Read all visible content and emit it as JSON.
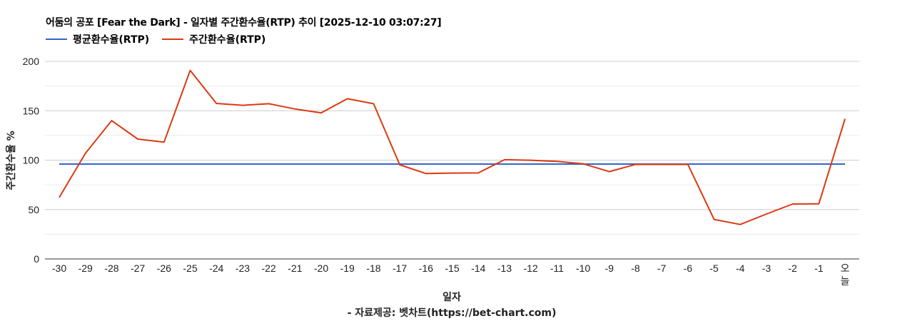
{
  "title": "어둠의 공포 [Fear the Dark] - 일자별 주간환수율(RTP) 추이 [2025-12-10 03:07:27]",
  "legend": [
    {
      "label": "평균환수율(RTP)",
      "color": "#3366cc"
    },
    {
      "label": "주간환수율(RTP)",
      "color": "#dc3912"
    }
  ],
  "source_note": "- 자료제공: 벳차트(https://bet-chart.com)",
  "chart_data": {
    "type": "line",
    "title": "어둠의 공포 [Fear the Dark] - 일자별 주간환수율(RTP) 추이 [2025-12-10 03:07:27]",
    "xlabel": "일자",
    "ylabel": "주간환수율 %",
    "ylim": [
      0,
      200
    ],
    "yticks": [
      0,
      50,
      100,
      150,
      200
    ],
    "minor_gridlines": [
      25,
      75,
      125,
      175
    ],
    "grid": true,
    "legend_position": "top",
    "categories": [
      "-30",
      "-29",
      "-28",
      "-27",
      "-26",
      "-25",
      "-24",
      "-23",
      "-22",
      "-21",
      "-20",
      "-19",
      "-18",
      "-17",
      "-16",
      "-15",
      "-14",
      "-13",
      "-12",
      "-11",
      "-10",
      "-9",
      "-8",
      "-7",
      "-6",
      "-5",
      "-4",
      "-3",
      "-2",
      "-1",
      "오늘"
    ],
    "series": [
      {
        "name": "평균환수율(RTP)",
        "color": "#3366cc",
        "values": [
          96,
          96,
          96,
          96,
          96,
          96,
          96,
          96,
          96,
          96,
          96,
          96,
          96,
          96,
          96,
          96,
          96,
          96,
          96,
          96,
          96,
          96,
          96,
          96,
          96,
          96,
          96,
          96,
          96,
          96,
          96
        ]
      },
      {
        "name": "주간환수율(RTP)",
        "color": "#dc3912",
        "values": [
          62.3,
          106.9,
          140,
          121.3,
          118.2,
          190.8,
          157.4,
          155.5,
          157.1,
          151.8,
          147.8,
          162.2,
          157.1,
          95.3,
          86.4,
          86.9,
          87.1,
          100.4,
          99.9,
          98.7,
          96.3,
          88.4,
          95.7,
          95.7,
          95.7,
          40,
          34.9,
          45.5,
          55.6,
          55.8,
          141.8
        ]
      }
    ]
  }
}
